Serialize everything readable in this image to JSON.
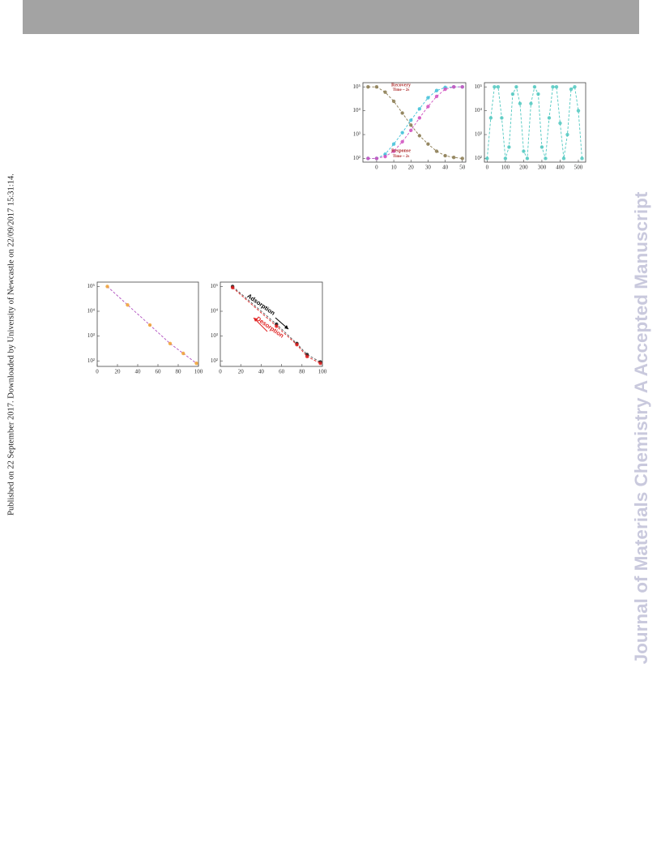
{
  "side_note": "Published on 22 September 2017. Downloaded by University of Newcastle on 22/09/2017 15:31:14.",
  "watermark": "Journal of Materials Chemistry A Accepted Manuscript",
  "chart_data": [
    {
      "type": "line",
      "log_y": true,
      "x": [
        -5,
        0,
        5,
        10,
        15,
        20,
        25,
        30,
        35,
        40,
        45,
        50
      ],
      "series": [
        {
          "color": "#8a7a50",
          "values": [
            100000,
            100000,
            60000,
            25000,
            8000,
            2500,
            900,
            400,
            200,
            130,
            110,
            100
          ]
        },
        {
          "color": "#40c0d8",
          "values": [
            100,
            100,
            150,
            400,
            1200,
            4000,
            12000,
            35000,
            70000,
            95000,
            100000,
            100000
          ]
        },
        {
          "color": "#d050c0",
          "values": [
            100,
            100,
            120,
            200,
            500,
            1500,
            5000,
            15000,
            40000,
            80000,
            100000,
            100000
          ]
        }
      ],
      "xlim": [
        -8,
        52
      ],
      "xticks": [
        0,
        10,
        20,
        30,
        40,
        50
      ],
      "ylim": [
        70,
        150000
      ],
      "yticks": [
        {
          "value": 100,
          "label": "10²"
        },
        {
          "value": 1000,
          "label": "10³"
        },
        {
          "value": 10000,
          "label": "10⁴"
        },
        {
          "value": 100000,
          "label": "10⁵"
        }
      ],
      "annotations": [
        "Recovery",
        "Time ~ 2s",
        "Response",
        "Time ~ 2s"
      ]
    },
    {
      "type": "line",
      "log_y": true,
      "x": [
        0,
        20,
        40,
        60,
        80,
        100,
        120,
        140,
        160,
        180,
        200,
        220,
        240,
        260,
        280,
        300,
        320,
        340,
        360,
        380,
        400,
        420,
        440,
        460,
        480,
        500,
        520
      ],
      "series": [
        {
          "color": "#50c8c0",
          "values": [
            100,
            5000,
            100000,
            100000,
            5000,
            100,
            300,
            50000,
            100000,
            20000,
            200,
            100,
            20000,
            100000,
            50000,
            300,
            100,
            5000,
            100000,
            100000,
            3000,
            100,
            1000,
            80000,
            100000,
            10000,
            100
          ]
        }
      ],
      "xlim": [
        -15,
        540
      ],
      "xticks": [
        0,
        100,
        200,
        300,
        400,
        500
      ],
      "ylim": [
        70,
        150000
      ],
      "yticks": [
        {
          "value": 100,
          "label": "10²"
        },
        {
          "value": 1000,
          "label": "10³"
        },
        {
          "value": 10000,
          "label": "10⁴"
        },
        {
          "value": 100000,
          "label": "10⁵"
        }
      ]
    },
    {
      "type": "line",
      "log_y": true,
      "x": [
        10,
        30,
        52,
        72,
        85,
        98
      ],
      "series": [
        {
          "color": "#f0a030",
          "line_color": "#b050c0",
          "values": [
            100000,
            18000,
            2800,
            500,
            200,
            80
          ]
        }
      ],
      "xlim": [
        0,
        100
      ],
      "xticks": [
        0,
        20,
        40,
        60,
        80,
        100
      ],
      "ylim": [
        60,
        150000
      ],
      "yticks": [
        {
          "value": 100,
          "label": "10²"
        },
        {
          "value": 1000,
          "label": "10³"
        },
        {
          "value": 10000,
          "label": "10⁴"
        },
        {
          "value": 100000,
          "label": "10⁵"
        }
      ]
    },
    {
      "type": "line",
      "log_y": true,
      "x": [
        12,
        55,
        75,
        85,
        98
      ],
      "series": [
        {
          "color": "#111111",
          "line_color": "#555555",
          "values": [
            100000,
            3000,
            500,
            180,
            90
          ]
        },
        {
          "color": "#e02020",
          "line_color": "#e02020",
          "values": [
            90000,
            2500,
            450,
            150,
            80
          ]
        }
      ],
      "xlim": [
        0,
        100
      ],
      "xticks": [
        0,
        20,
        40,
        60,
        80,
        100
      ],
      "ylim": [
        60,
        150000
      ],
      "yticks": [
        {
          "value": 100,
          "label": "10²"
        },
        {
          "value": 1000,
          "label": "10³"
        },
        {
          "value": 10000,
          "label": "10⁴"
        },
        {
          "value": 100000,
          "label": "10⁵"
        }
      ],
      "annotations": [
        "Adsorption",
        "Desorption"
      ]
    }
  ]
}
